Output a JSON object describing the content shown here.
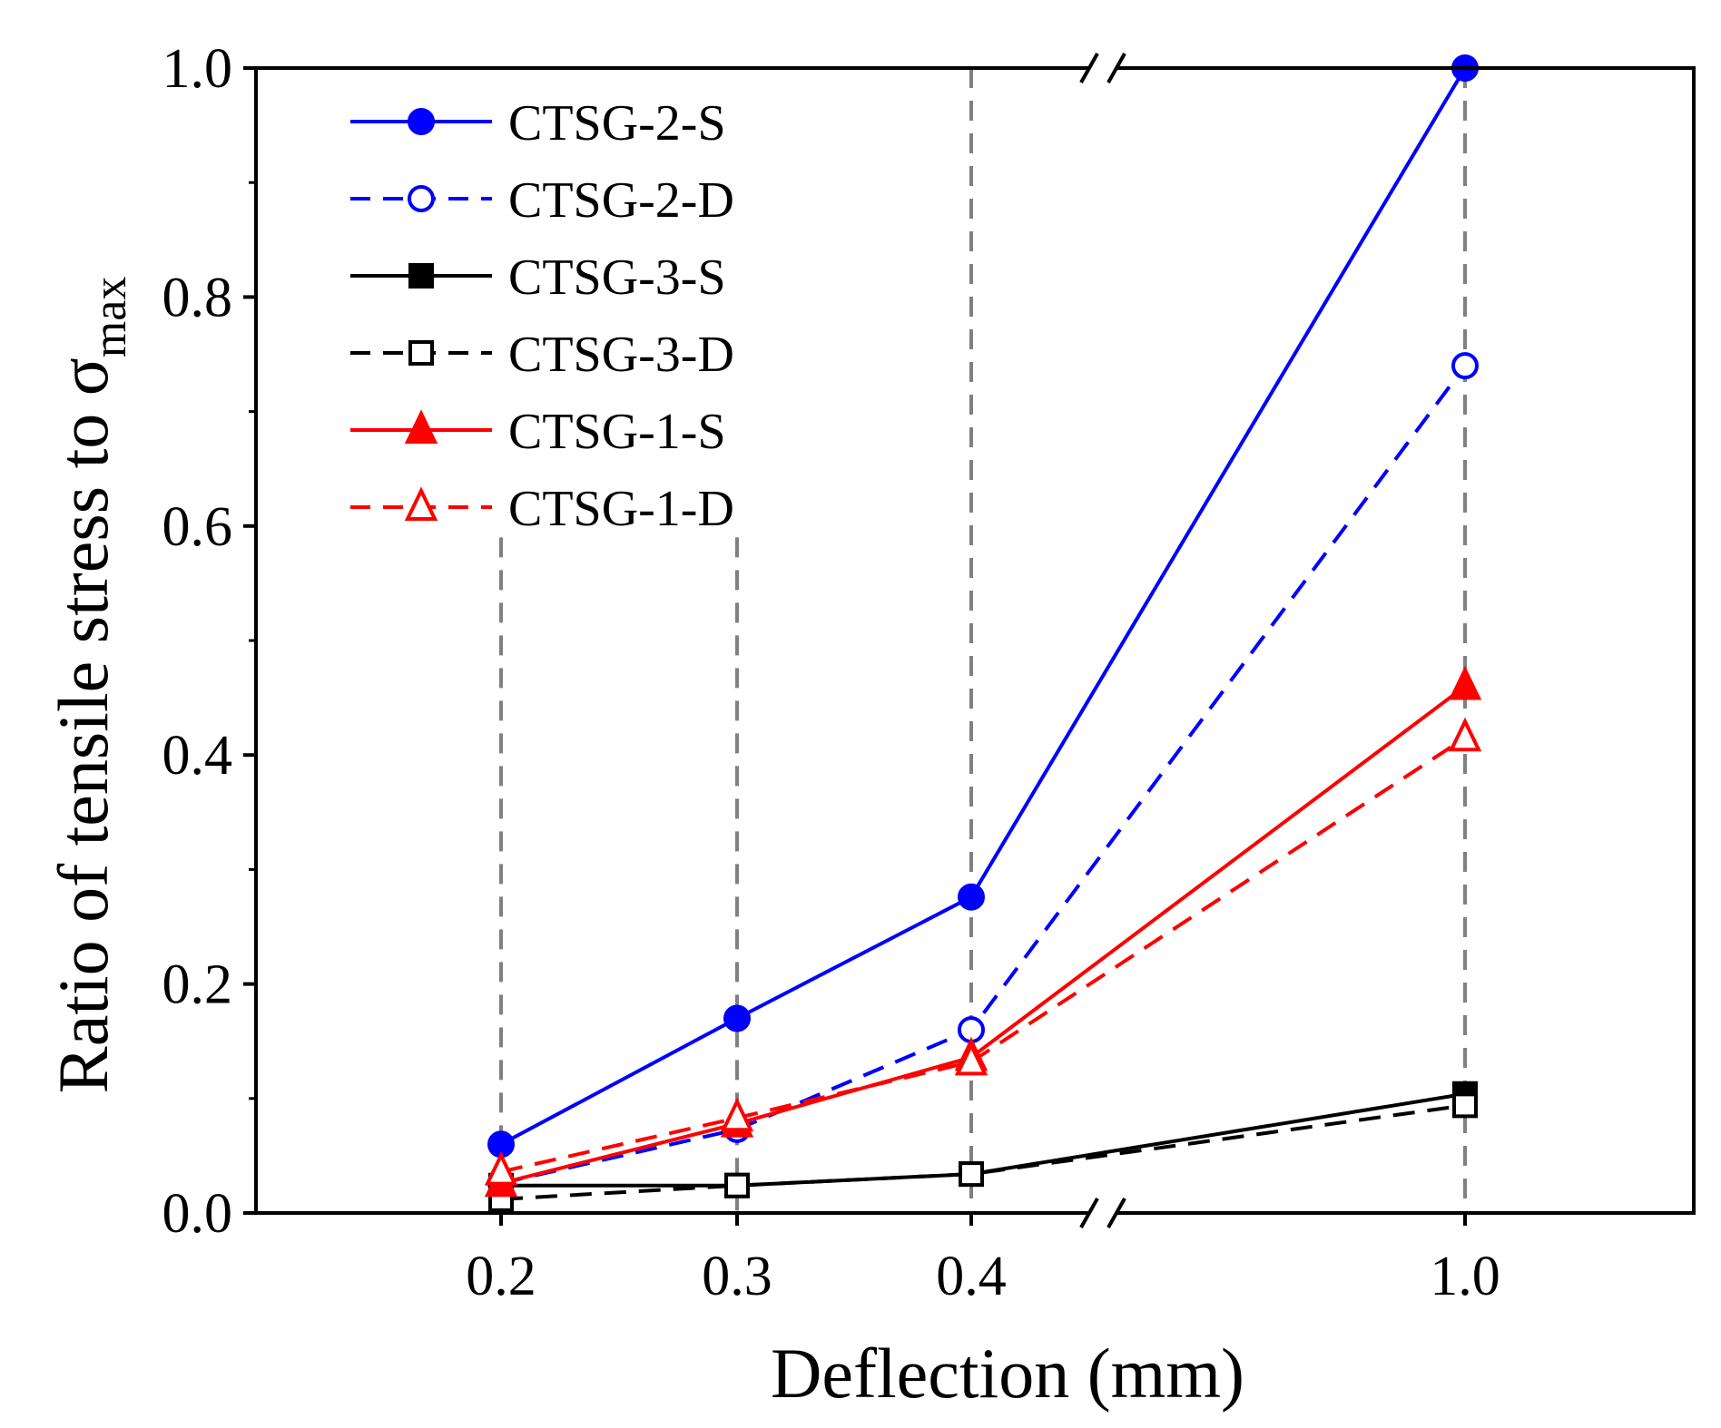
{
  "chart_data": {
    "type": "line",
    "title": "",
    "xlabel": "Deflection (mm)",
    "ylabel": "Ratio of tensile stress to σ",
    "ylabel_subscript": "max",
    "categories": [
      "0.2",
      "0.3",
      "0.4",
      "1.0"
    ],
    "x": [
      0.2,
      0.3,
      0.4,
      1.0
    ],
    "ylim": [
      0.0,
      1.0
    ],
    "yticks": [
      "0.0",
      "0.2",
      "0.4",
      "0.6",
      "0.8",
      "1.0"
    ],
    "axis_break": "between 0.4 and 1.0",
    "legend_position": "top-left",
    "series": [
      {
        "name": "CTSG-2-S",
        "values": [
          0.06,
          0.17,
          0.276,
          1.0
        ],
        "color": "#0000ff",
        "marker": "circle",
        "filled": true,
        "dashed": false
      },
      {
        "name": "CTSG-2-D",
        "values": [
          0.026,
          0.073,
          0.16,
          0.74
        ],
        "color": "#0000ff",
        "marker": "circle",
        "filled": false,
        "dashed": true
      },
      {
        "name": "CTSG-3-S",
        "values": [
          0.024,
          0.024,
          0.034,
          0.104
        ],
        "color": "#000000",
        "marker": "square",
        "filled": true,
        "dashed": false
      },
      {
        "name": "CTSG-3-D",
        "values": [
          0.012,
          0.024,
          0.034,
          0.094
        ],
        "color": "#000000",
        "marker": "square",
        "filled": false,
        "dashed": true
      },
      {
        "name": "CTSG-1-S",
        "values": [
          0.026,
          0.078,
          0.136,
          0.46
        ],
        "color": "#ff0000",
        "marker": "triangle",
        "filled": true,
        "dashed": false
      },
      {
        "name": "CTSG-1-D",
        "values": [
          0.036,
          0.083,
          0.132,
          0.415
        ],
        "color": "#ff0000",
        "marker": "triangle",
        "filled": false,
        "dashed": true
      }
    ]
  }
}
